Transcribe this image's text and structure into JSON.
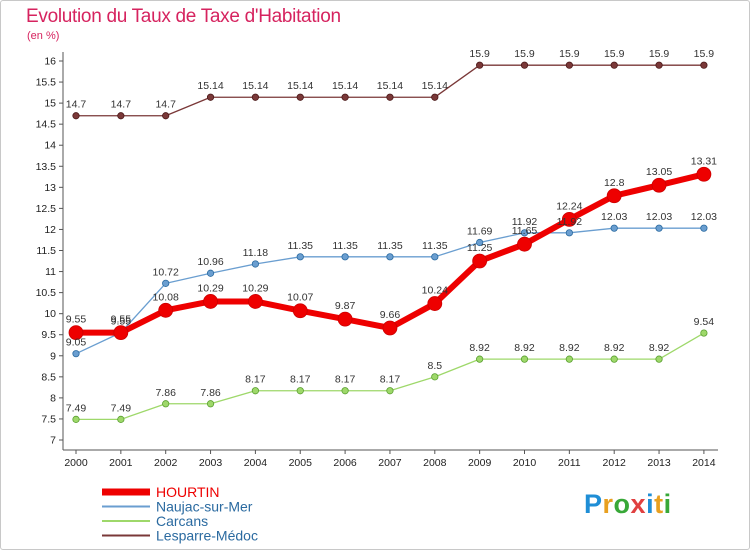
{
  "header": {
    "title": "Evolution du Taux de Taxe d'Habitation",
    "subtitle": "(en %)"
  },
  "logo": {
    "text": "Proxiti",
    "colors": [
      "#1f8ed6",
      "#e8a020",
      "#38a838",
      "#e04040",
      "#1f8ed6",
      "#e8a020",
      "#38a838"
    ]
  },
  "chart_data": {
    "type": "line",
    "title": "Evolution du Taux de Taxe d'Habitation",
    "ylabel": "(en %)",
    "xlabel": "",
    "x": [
      "2000",
      "2001",
      "2002",
      "2003",
      "2004",
      "2005",
      "2006",
      "2007",
      "2008",
      "2009",
      "2010",
      "2011",
      "2012",
      "2013",
      "2014"
    ],
    "ylim": [
      7,
      16
    ],
    "yticks": [
      "7",
      "7.5",
      "8",
      "8.5",
      "9",
      "9.5",
      "10",
      "10.5",
      "11",
      "11.5",
      "12",
      "12.5",
      "13",
      "13.5",
      "14",
      "14.5",
      "15",
      "15.5",
      "16"
    ],
    "grid": false,
    "legend": "bottom-left",
    "series": [
      {
        "name": "HOURTIN",
        "color": "#ee0000",
        "values": [
          9.55,
          9.55,
          10.08,
          10.29,
          10.29,
          10.07,
          9.87,
          9.66,
          10.24,
          11.25,
          11.65,
          12.24,
          12.8,
          13.05,
          13.31
        ],
        "labels": [
          "9.55",
          "9.55",
          "10.08",
          "10.29",
          "10.29",
          "10.07",
          "9.87",
          "9.66",
          "10.24",
          "11.25",
          "11.65",
          "12.24",
          "12.8",
          "13.05",
          "13.31"
        ]
      },
      {
        "name": "Naujac-sur-Mer",
        "color": "#6a9ed0",
        "values": [
          9.05,
          9.55,
          10.72,
          10.96,
          11.18,
          11.35,
          11.35,
          11.35,
          11.35,
          11.69,
          11.92,
          11.92,
          12.03,
          12.03,
          12.03
        ],
        "labels": [
          "9.05",
          "9.55",
          "10.72",
          "10.96",
          "11.18",
          "11.35",
          "11.35",
          "11.35",
          "11.35",
          "11.69",
          "11.92",
          "11.92",
          "12.03",
          "12.03",
          "12.03"
        ]
      },
      {
        "name": "Carcans",
        "color": "#9ed86a",
        "values": [
          7.49,
          7.49,
          7.86,
          7.86,
          8.17,
          8.17,
          8.17,
          8.17,
          8.5,
          8.92,
          8.92,
          8.92,
          8.92,
          8.92,
          9.54
        ],
        "labels": [
          "7.49",
          "7.49",
          "7.86",
          "7.86",
          "8.17",
          "8.17",
          "8.17",
          "8.17",
          "8.5",
          "8.92",
          "8.92",
          "8.92",
          "8.92",
          "8.92",
          "9.54"
        ]
      },
      {
        "name": "Lesparre-Médoc",
        "color": "#7a3838",
        "values": [
          14.7,
          14.7,
          14.7,
          15.14,
          15.14,
          15.14,
          15.14,
          15.14,
          15.14,
          15.9,
          15.9,
          15.9,
          15.9,
          15.9,
          15.9
        ],
        "labels": [
          "14.7",
          "14.7",
          "14.7",
          "15.14",
          "15.14",
          "15.14",
          "15.14",
          "15.14",
          "15.14",
          "15.9",
          "15.9",
          "15.9",
          "15.9",
          "15.9",
          "15.9"
        ]
      }
    ]
  }
}
